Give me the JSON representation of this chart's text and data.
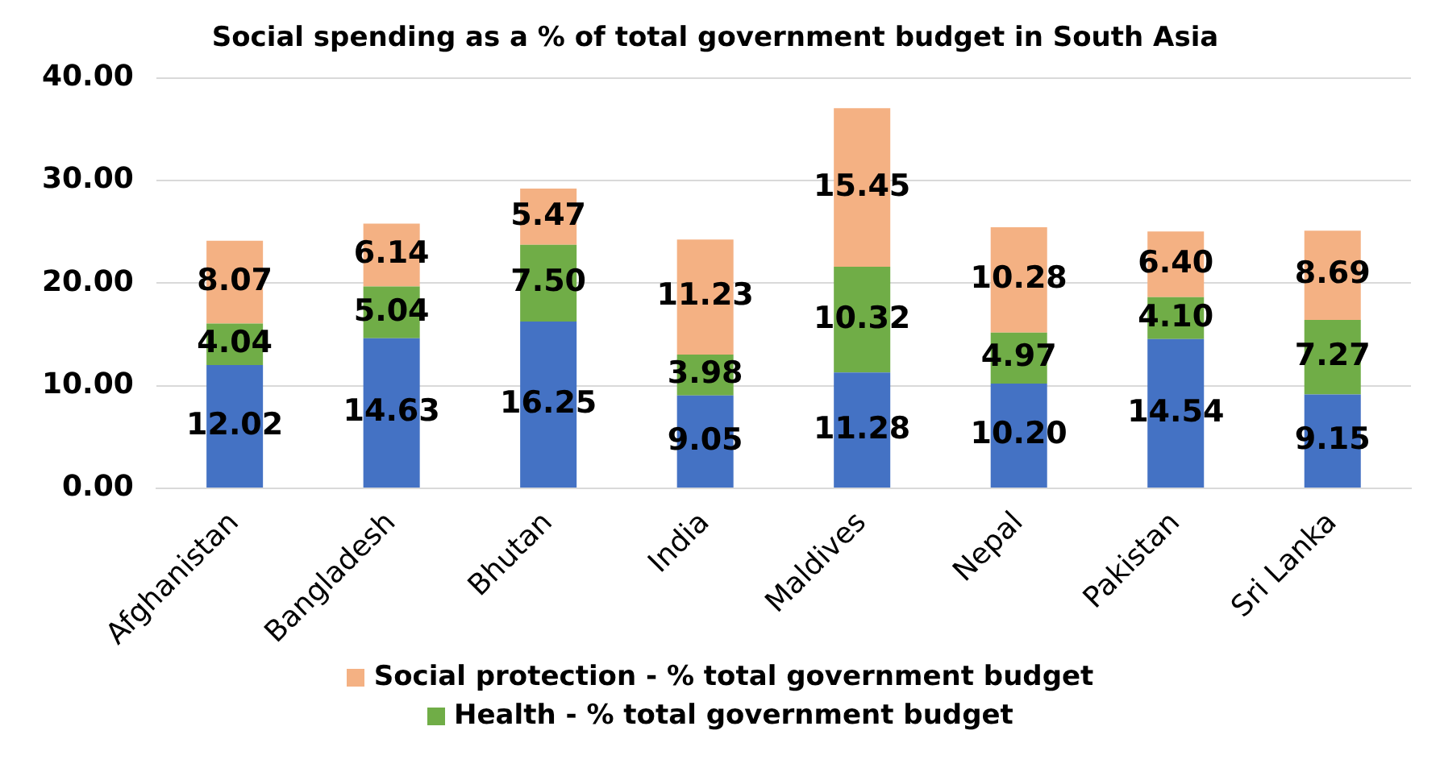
{
  "chart_data": {
    "type": "bar",
    "title": "Social spending as a % of total government budget in South Asia",
    "stacked": true,
    "grid": "y",
    "legend": "bottom",
    "categories": [
      "Afghanistan",
      "Bangladesh",
      "Bhutan",
      "India",
      "Maldives",
      "Nepal",
      "Pakistan",
      "Sri Lanka"
    ],
    "ylim": [
      0,
      40
    ],
    "yticks": [
      {
        "value": 0,
        "label": "0.00"
      },
      {
        "value": 10,
        "label": "10.00"
      },
      {
        "value": 20,
        "label": "20.00"
      },
      {
        "value": 30,
        "label": "30.00"
      },
      {
        "value": 40,
        "label": "40.00"
      }
    ],
    "series": [
      {
        "color": "#4472c4",
        "values": [
          12.02,
          14.63,
          16.25,
          9.05,
          11.28,
          10.2,
          14.54,
          9.15
        ],
        "value_labels": [
          "12.02",
          "14.63",
          "16.25",
          "9.05",
          "11.28",
          "10.20",
          "14.54",
          "9.15"
        ]
      },
      {
        "name": "Health - % total government budget",
        "color": "#70ad47",
        "values": [
          4.04,
          5.04,
          7.5,
          3.98,
          10.32,
          4.97,
          4.1,
          7.27
        ],
        "value_labels": [
          "4.04",
          "5.04",
          "7.50",
          "3.98",
          "10.32",
          "4.97",
          "4.10",
          "7.27"
        ]
      },
      {
        "name": "Social protection - % total government budget",
        "color": "#f4b183",
        "values": [
          8.07,
          6.14,
          5.47,
          11.23,
          15.45,
          10.28,
          6.4,
          8.69
        ],
        "value_labels": [
          "8.07",
          "6.14",
          "5.47",
          "11.23",
          "15.45",
          "10.28",
          "6.40",
          "8.69"
        ]
      }
    ]
  }
}
